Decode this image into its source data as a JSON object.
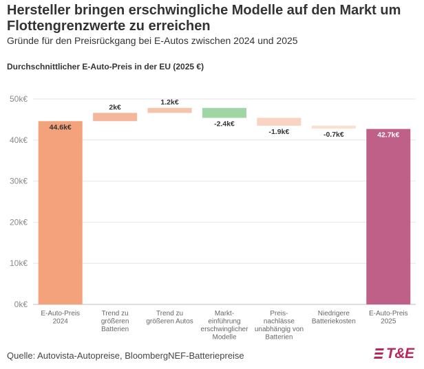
{
  "header": {
    "title": "Hersteller bringen erschwingliche Modelle auf den Markt um Flottengrenzwerte zu erreichen",
    "subtitle": "Gründe für den Preisrückgang bei E-Autos zwischen 2024 und 2025"
  },
  "chart_label": "Durchschnittlicher E-Auto-Preis in der EU (2025 €)",
  "footer": {
    "source": "Quelle: Autovista-Autopreise, BloombergNEF-Batteriepreise",
    "logo_text": "T&E",
    "logo_icon": "te-stripes-icon"
  },
  "chart_data": {
    "type": "waterfall",
    "title": "Durchschnittlicher E-Auto-Preis in der EU (2025 €)",
    "unit": "k€",
    "ylim": [
      0,
      50
    ],
    "yticks": [
      0,
      10,
      20,
      30,
      40,
      50
    ],
    "ytick_labels": [
      "0k€",
      "10k€",
      "20k€",
      "30k€",
      "40k€",
      "50k€"
    ],
    "grid": true,
    "steps": [
      {
        "category": [
          "E-Auto-Preis",
          "2024"
        ],
        "kind": "total",
        "value": 44.6,
        "label": "44.6k€",
        "color": "#f4a27b",
        "label_color": "#333333"
      },
      {
        "category": [
          "Trend zu",
          "größeren",
          "Batterien"
        ],
        "kind": "delta",
        "value": 2.0,
        "label": "2k€",
        "color": "#f4b79c",
        "label_color": "#333333"
      },
      {
        "category": [
          "Trend zu",
          "größeren Autos"
        ],
        "kind": "delta",
        "value": 1.2,
        "label": "1.2k€",
        "color": "#f6c3ab",
        "label_color": "#333333"
      },
      {
        "category": [
          "Markt-",
          "einführung",
          "erschwinglicher",
          "Modelle"
        ],
        "kind": "delta",
        "value": -2.4,
        "label": "-2.4k€",
        "color": "#9ed7a3",
        "label_color": "#333333"
      },
      {
        "category": [
          "Preis-",
          "nachlässe",
          "unabhängig von",
          "Batterien"
        ],
        "kind": "delta",
        "value": -1.9,
        "label": "-1.9k€",
        "color": "#f9d3c1",
        "label_color": "#333333"
      },
      {
        "category": [
          "Niedrigere",
          "Batteriekosten"
        ],
        "kind": "delta",
        "value": -0.7,
        "label": "-0.7k€",
        "color": "#fbe0d2",
        "label_color": "#333333"
      },
      {
        "category": [
          "E-Auto-Preis",
          "2025"
        ],
        "kind": "total",
        "value": 42.7,
        "label": "42.7k€",
        "color": "#bf6088",
        "label_color": "#ffffff"
      }
    ]
  }
}
